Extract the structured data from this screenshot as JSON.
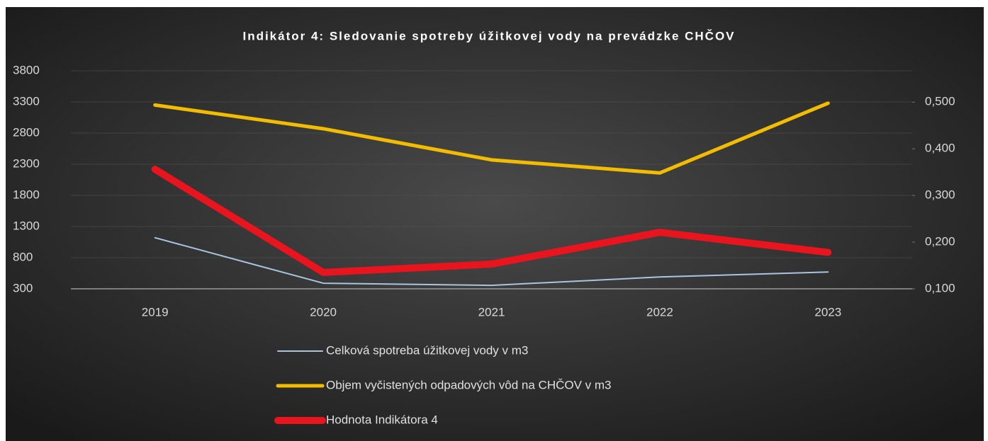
{
  "chart_data": {
    "type": "line",
    "title": "Indikátor 4: Sledovanie spotreby úžitkovej vody na prevádzke CHČOV",
    "categories": [
      "2019",
      "2020",
      "2021",
      "2022",
      "2023"
    ],
    "series": [
      {
        "name": "Celková spotreba úžitkovej vody v m3",
        "color": "#a9c4e0",
        "values": [
          1120,
          390,
          355,
          490,
          570
        ]
      },
      {
        "name": "Objem vyčistených odpadových vôd na CHČOV v m3",
        "color": "#f2bc00",
        "values": [
          3250,
          2870,
          2370,
          2160,
          3280
        ]
      },
      {
        "name": "Hodnota Indikátora 4",
        "color": "#e8141e",
        "axis": "y2",
        "values": [
          0.356,
          0.135,
          0.153,
          0.221,
          0.178
        ]
      }
    ],
    "ylim": [
      300,
      3800
    ],
    "yticks": [
      300,
      800,
      1300,
      1800,
      2300,
      2800,
      3300,
      3800
    ],
    "y2lim": [
      0.1,
      0.567
    ],
    "y2ticks": [
      {
        "value": 0.1,
        "label": "0,100"
      },
      {
        "value": 0.2,
        "label": "0,200"
      },
      {
        "value": 0.3,
        "label": "0,300"
      },
      {
        "value": 0.4,
        "label": "0,400"
      },
      {
        "value": 0.5,
        "label": "0,500"
      }
    ],
    "grid": true
  }
}
